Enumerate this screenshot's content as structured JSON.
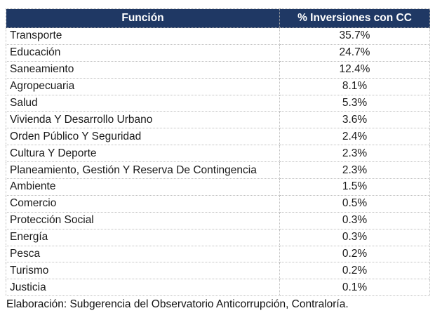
{
  "colors": {
    "header_bg": "#1F3864",
    "header_text": "#FFFFFF",
    "row_border": "#BFBFBF",
    "body_text": "#1A1A1A"
  },
  "table": {
    "headers": [
      {
        "label": "Función"
      },
      {
        "label": "% Inversiones con CC"
      }
    ],
    "rows": [
      {
        "funcion": "Transporte",
        "pct": "35.7%"
      },
      {
        "funcion": "Educación",
        "pct": "24.7%"
      },
      {
        "funcion": "Saneamiento",
        "pct": "12.4%"
      },
      {
        "funcion": "Agropecuaria",
        "pct": "8.1%"
      },
      {
        "funcion": "Salud",
        "pct": "5.3%"
      },
      {
        "funcion": "Vivienda Y Desarrollo Urbano",
        "pct": "3.6%"
      },
      {
        "funcion": "Orden Público Y Seguridad",
        "pct": "2.4%"
      },
      {
        "funcion": "Cultura Y Deporte",
        "pct": "2.3%"
      },
      {
        "funcion": "Planeamiento, Gestión Y Reserva De Contingencia",
        "pct": "2.3%"
      },
      {
        "funcion": "Ambiente",
        "pct": "1.5%"
      },
      {
        "funcion": "Comercio",
        "pct": "0.5%"
      },
      {
        "funcion": "Protección Social",
        "pct": "0.3%"
      },
      {
        "funcion": "Energía",
        "pct": "0.3%"
      },
      {
        "funcion": "Pesca",
        "pct": "0.2%"
      },
      {
        "funcion": "Turismo",
        "pct": "0.2%"
      },
      {
        "funcion": "Justicia",
        "pct": "0.1%"
      }
    ]
  },
  "footer": {
    "text": "Elaboración: Subgerencia del Observatorio Anticorrupción, Contraloría."
  }
}
